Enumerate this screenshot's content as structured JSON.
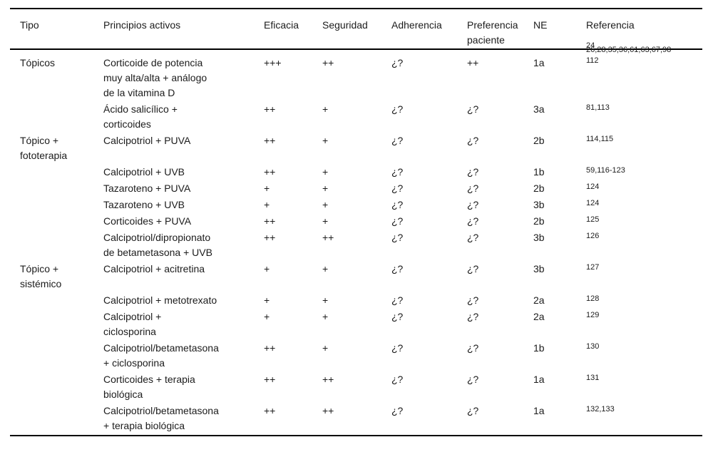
{
  "table": {
    "columns": [
      "Tipo",
      "Principios activos",
      "Eficacia",
      "Seguridad",
      "Adherencia",
      "Preferencia paciente",
      "NE",
      "Referencia"
    ],
    "rows": [
      {
        "tipo_lines": [
          "Tópicos"
        ],
        "principios_lines": [
          "Corticoide de potencia",
          "muy alta/alta + análogo",
          "de la vitamina D"
        ],
        "eficacia": "+++",
        "seguridad": "++",
        "adherencia": "¿?",
        "preferencia": "++",
        "ne": "1a",
        "ref_lines": [
          "24",
          "26,28,35,36,61,63,67,98",
          "112"
        ]
      },
      {
        "tipo_lines": [],
        "principios_lines": [
          "Ácido salicílico +",
          "corticoides"
        ],
        "eficacia": "++",
        "seguridad": "+",
        "adherencia": "¿?",
        "preferencia": "¿?",
        "ne": "3a",
        "ref": "81,113"
      },
      {
        "tipo_lines": [
          "Tópico +",
          "fototerapia"
        ],
        "principios_lines": [
          "Calcipotriol + PUVA"
        ],
        "eficacia": "++",
        "seguridad": "+",
        "adherencia": "¿?",
        "preferencia": "¿?",
        "ne": "2b",
        "ref": "114,115"
      },
      {
        "tipo_lines": [],
        "principios_lines": [
          "Calcipotriol + UVB"
        ],
        "eficacia": "++",
        "seguridad": "+",
        "adherencia": "¿?",
        "preferencia": "¿?",
        "ne": "1b",
        "ref": "59,116-123"
      },
      {
        "tipo_lines": [],
        "principios_lines": [
          "Tazaroteno + PUVA"
        ],
        "eficacia": "+",
        "seguridad": "+",
        "adherencia": "¿?",
        "preferencia": "¿?",
        "ne": "2b",
        "ref": "124"
      },
      {
        "tipo_lines": [],
        "principios_lines": [
          "Tazaroteno + UVB"
        ],
        "eficacia": "+",
        "seguridad": "+",
        "adherencia": "¿?",
        "preferencia": "¿?",
        "ne": "3b",
        "ref": "124"
      },
      {
        "tipo_lines": [],
        "principios_lines": [
          "Corticoides + PUVA"
        ],
        "eficacia": "++",
        "seguridad": "+",
        "adherencia": "¿?",
        "preferencia": "¿?",
        "ne": "2b",
        "ref": "125"
      },
      {
        "tipo_lines": [],
        "principios_lines": [
          "Calcipotriol/dipropionato",
          "de betametasona + UVB"
        ],
        "eficacia": "++",
        "seguridad": "++",
        "adherencia": "¿?",
        "preferencia": "¿?",
        "ne": "3b",
        "ref": "126"
      },
      {
        "tipo_lines": [
          "Tópico +",
          "sistémico"
        ],
        "principios_lines": [
          "Calcipotriol + acitretina"
        ],
        "eficacia": "+",
        "seguridad": "+",
        "adherencia": "¿?",
        "preferencia": "¿?",
        "ne": "3b",
        "ref": "127"
      },
      {
        "tipo_lines": [],
        "principios_lines": [
          "Calcipotriol + metotrexato"
        ],
        "eficacia": "+",
        "seguridad": "+",
        "adherencia": "¿?",
        "preferencia": "¿?",
        "ne": "2a",
        "ref": "128"
      },
      {
        "tipo_lines": [],
        "principios_lines": [
          "Calcipotriol +",
          "ciclosporina"
        ],
        "eficacia": "+",
        "seguridad": "+",
        "adherencia": "¿?",
        "preferencia": "¿?",
        "ne": "2a",
        "ref": "129"
      },
      {
        "tipo_lines": [],
        "principios_lines": [
          "Calcipotriol/betametasona",
          "+ ciclosporina"
        ],
        "eficacia": "++",
        "seguridad": "+",
        "adherencia": "¿?",
        "preferencia": "¿?",
        "ne": "1b",
        "ref": "130"
      },
      {
        "tipo_lines": [],
        "principios_lines": [
          "Corticoides + terapia",
          "biológica"
        ],
        "eficacia": "++",
        "seguridad": "++",
        "adherencia": "¿?",
        "preferencia": "¿?",
        "ne": "1a",
        "ref": "131"
      },
      {
        "tipo_lines": [],
        "principios_lines": [
          "Calcipotriol/betametasona",
          "+ terapia biológica"
        ],
        "eficacia": "++",
        "seguridad": "++",
        "adherencia": "¿?",
        "preferencia": "¿?",
        "ne": "1a",
        "ref": "132,133"
      }
    ]
  }
}
